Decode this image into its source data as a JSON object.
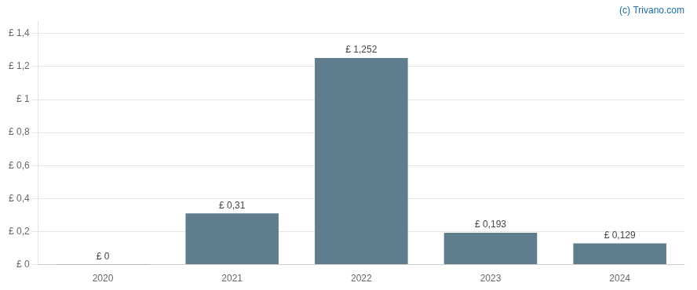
{
  "chart_data": {
    "type": "bar",
    "categories": [
      "2020",
      "2021",
      "2022",
      "2023",
      "2024"
    ],
    "values": [
      0.001,
      0.31,
      1.252,
      0.193,
      0.129
    ],
    "value_labels": [
      "£ 0",
      "£ 0,31",
      "£ 1,252",
      "£ 0,193",
      "£ 0,129"
    ],
    "data_labels": true,
    "color": "#5f7d8c",
    "ylim": [
      0,
      1.48
    ],
    "yticks": [
      {
        "value": 0,
        "label": "£ 0"
      },
      {
        "value": 0.2,
        "label": "£ 0,2"
      },
      {
        "value": 0.4,
        "label": "£ 0,4"
      },
      {
        "value": 0.6,
        "label": "£ 0,6"
      },
      {
        "value": 0.8,
        "label": "£ 0,8"
      },
      {
        "value": 1.0,
        "label": "£ 1"
      },
      {
        "value": 1.2,
        "label": "£ 1,2"
      },
      {
        "value": 1.4,
        "label": "£ 1,4"
      }
    ],
    "grid": true,
    "annotations": [
      {
        "text": "(c) Trivano.com",
        "color": "#1a6fa8"
      }
    ]
  }
}
